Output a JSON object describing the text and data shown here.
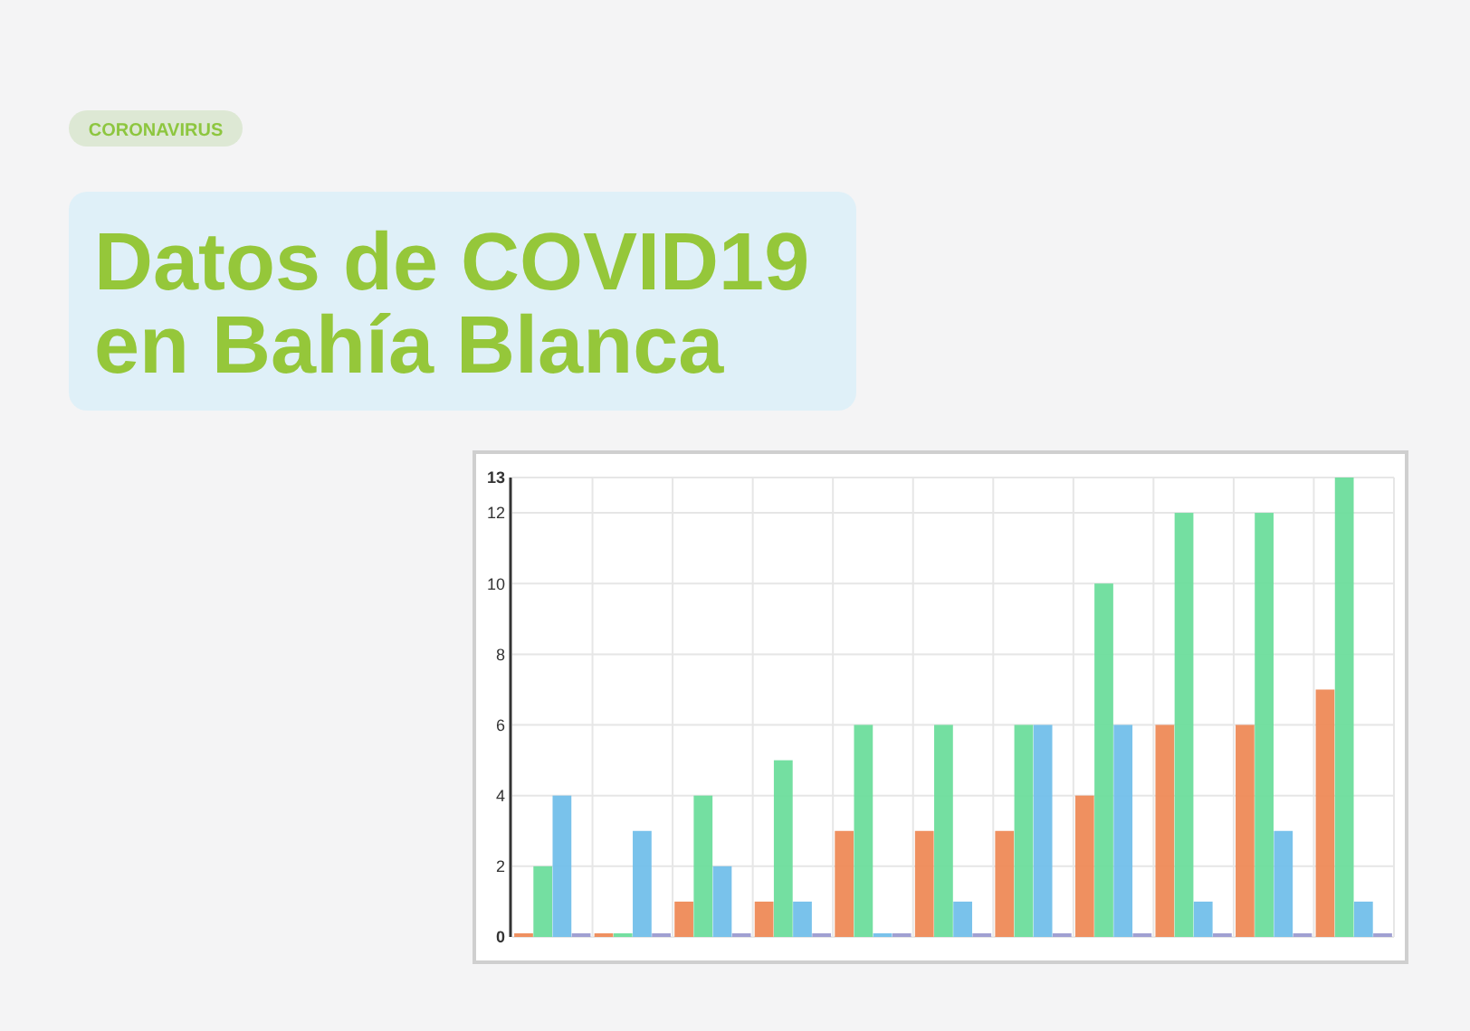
{
  "chart_data": {
    "type": "bar",
    "title": "Datos de COVID19 en Bahía Blanca",
    "subtitle": "CORONAVIRUS",
    "categories": [
      null,
      null,
      null,
      null,
      null,
      null,
      null,
      null,
      null,
      null,
      null
    ],
    "series": [
      {
        "color": "#ee8a57",
        "values": [
          0,
          0,
          1,
          1,
          3,
          3,
          3,
          4,
          6,
          6,
          7
        ]
      },
      {
        "color": "#6ddd9c",
        "values": [
          2,
          0,
          4,
          5,
          6,
          6,
          6,
          10,
          12,
          12,
          13
        ]
      },
      {
        "color": "#72bfea",
        "values": [
          4,
          3,
          2,
          1,
          0,
          1,
          6,
          6,
          1,
          3,
          1
        ]
      },
      {
        "color": "#9b9bd0",
        "values": [
          0,
          0,
          0,
          0,
          0,
          0,
          0,
          0,
          0,
          0,
          0
        ]
      }
    ],
    "ylim": [
      0,
      13
    ],
    "yticks": [
      0,
      2,
      4,
      6,
      8,
      10,
      12,
      13
    ],
    "grid": true
  }
}
